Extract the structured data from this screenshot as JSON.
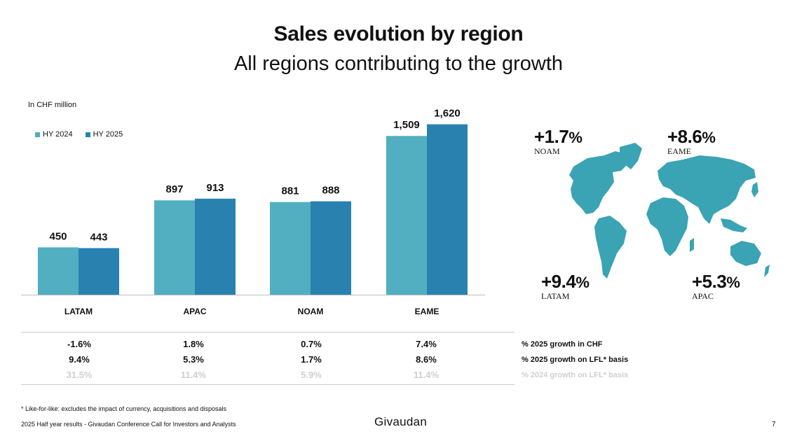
{
  "slide": {
    "title": "Sales evolution by region",
    "subtitle": "All regions contributing to the growth",
    "unit_note": "In CHF million",
    "footnote": "* Like-for-like: excludes the impact of currency, acquisitions and disposals",
    "footer": "2025 Half year results - Givaudan Conference Call for Investors and Analysts",
    "brand": "Givaudan",
    "page_number": "7"
  },
  "colors": {
    "hy2024": "#52aec1",
    "hy2025": "#2981b0",
    "map": "#3aa3b4",
    "muted": "#cfcfcf"
  },
  "chart_data": {
    "type": "bar",
    "categories": [
      "LATAM",
      "APAC",
      "NOAM",
      "EAME"
    ],
    "series": [
      {
        "name": "HY 2024",
        "values": [
          450,
          897,
          881,
          1509
        ],
        "labels": [
          "450",
          "897",
          "881",
          "1,509"
        ]
      },
      {
        "name": "HY 2025",
        "values": [
          443,
          913,
          888,
          1620
        ],
        "labels": [
          "443",
          "913",
          "888",
          "1,620"
        ]
      }
    ],
    "ylabel": "In CHF million",
    "ylim": [
      0,
      1850
    ],
    "grid": false,
    "legend_position": "top-left"
  },
  "table": {
    "rows": [
      {
        "label": "% 2025 growth in CHF",
        "values": [
          "-1.6%",
          "1.8%",
          "0.7%",
          "7.4%"
        ],
        "muted": false
      },
      {
        "label": "% 2025 growth on LFL* basis",
        "values": [
          "9.4%",
          "5.3%",
          "1.7%",
          "8.6%"
        ],
        "muted": false
      },
      {
        "label": "% 2024 growth on LFL* basis",
        "values": [
          "31.5%",
          "11.4%",
          "5.9%",
          "11.4%"
        ],
        "muted": true
      }
    ]
  },
  "map_callouts": {
    "noam": {
      "value": "+1.7",
      "pct": "%",
      "region": "NOAM"
    },
    "eame": {
      "value": "+8.6",
      "pct": "%",
      "region": "EAME"
    },
    "latam": {
      "value": "+9.4",
      "pct": "%",
      "region": "LATAM"
    },
    "apac": {
      "value": "+5.3",
      "pct": "%",
      "region": "APAC"
    }
  }
}
